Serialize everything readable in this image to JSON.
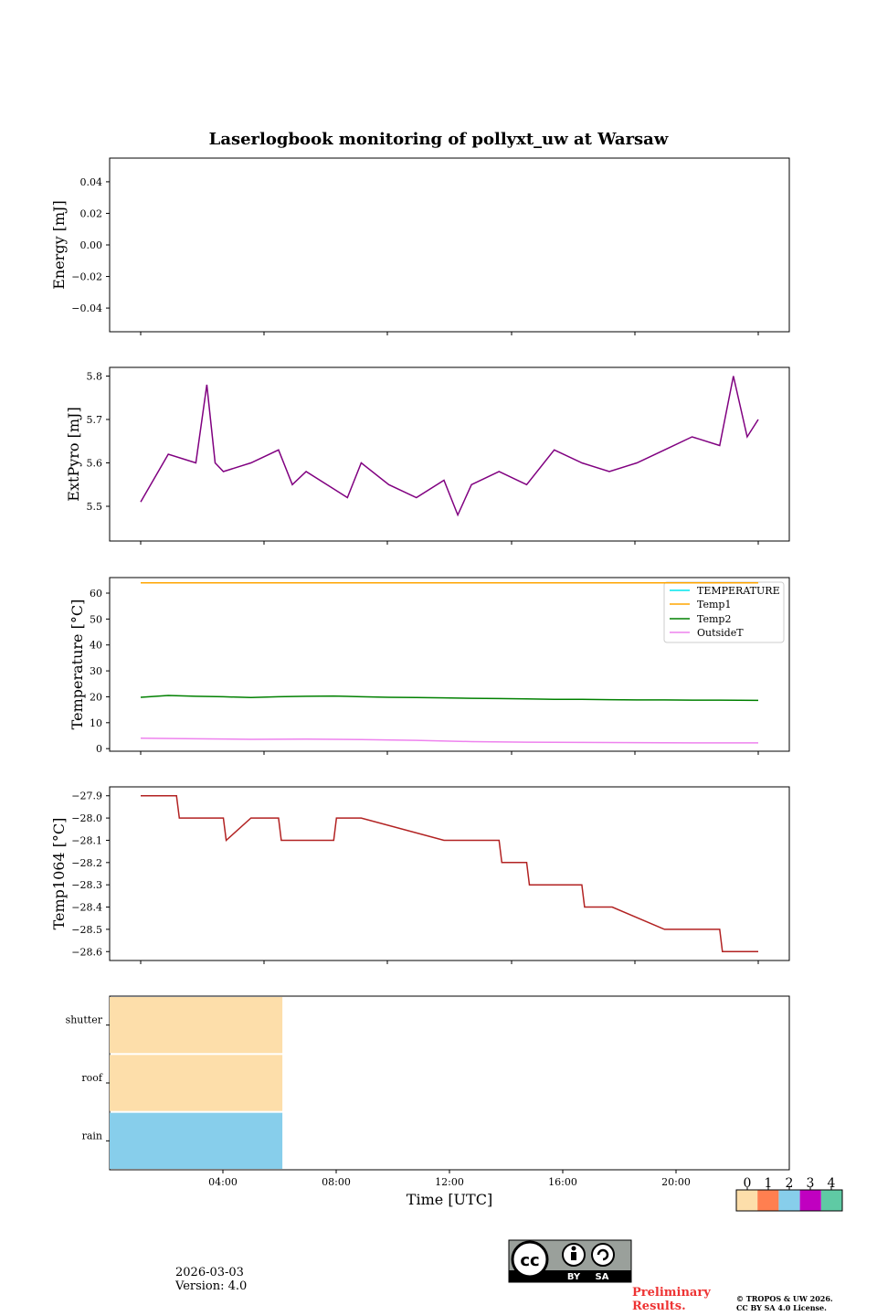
{
  "title": "Laserlogbook monitoring of pollyxt_uw at Warsaw",
  "date": "2026-03-03",
  "version": "Version: 4.0",
  "preliminary": [
    "Preliminary",
    "Results."
  ],
  "copyright": [
    "© TROPOS & UW 2026.",
    "CC BY SA 4.0 License."
  ],
  "license_badge": {
    "text": "cc",
    "by": "BY",
    "sa": "SA"
  },
  "colors": {
    "purple": "#800080",
    "orange": "#ffa500",
    "green": "#008000",
    "violet": "#ee82ee",
    "cyan": "#00e5ee",
    "red": "#b22222"
  },
  "chart_data": [
    {
      "type": "line",
      "ylabel": "Energy [mJ]",
      "xlim": [
        0,
        24
      ],
      "ylim": [
        -0.055,
        0.055
      ],
      "yticks": [
        0.04,
        0.02,
        0.0,
        -0.02,
        -0.04
      ],
      "ytick_labels": [
        "0.04",
        "0.02",
        "0.00",
        "−0.02",
        "−0.04"
      ],
      "series": []
    },
    {
      "type": "line",
      "ylabel": "ExtPyro [mJ]",
      "ylim": [
        5.42,
        5.82
      ],
      "yticks": [
        5.5,
        5.6,
        5.7,
        5.8
      ],
      "ytick_labels": [
        "5.5",
        "5.6",
        "5.7",
        "5.8"
      ],
      "series": [
        {
          "name": "ExtPyro",
          "color": "#800080",
          "x": [
            1.0,
            2.0,
            3.0,
            3.4,
            3.7,
            4.0,
            5.0,
            6.0,
            6.5,
            7.0,
            8.0,
            8.5,
            9.0,
            10.0,
            11.0,
            12.0,
            12.5,
            13.0,
            14.0,
            15.0,
            16.0,
            17.0,
            18.0,
            19.0,
            20.0,
            21.0,
            22.0,
            22.5,
            23.0,
            23.4
          ],
          "y": [
            5.51,
            5.62,
            5.6,
            5.78,
            5.6,
            5.58,
            5.6,
            5.63,
            5.55,
            5.58,
            5.54,
            5.52,
            5.6,
            5.55,
            5.52,
            5.56,
            5.48,
            5.55,
            5.58,
            5.55,
            5.63,
            5.6,
            5.58,
            5.6,
            5.63,
            5.66,
            5.64,
            5.8,
            5.66,
            5.7
          ]
        }
      ]
    },
    {
      "type": "line",
      "ylabel": "Temperature [°C]",
      "ylim": [
        -1,
        66
      ],
      "yticks": [
        0,
        10,
        20,
        30,
        40,
        50,
        60
      ],
      "ytick_labels": [
        "0",
        "10",
        "20",
        "30",
        "40",
        "50",
        "60"
      ],
      "legend": [
        "TEMPERATURE",
        "Temp1",
        "Temp2",
        "OutsideT"
      ],
      "legend_position": "top-right",
      "series": [
        {
          "name": "TEMPERATURE",
          "color": "#00e5ee",
          "x": [],
          "y": []
        },
        {
          "name": "Temp1",
          "color": "#ffa500",
          "x": [
            1.0,
            23.4
          ],
          "y": [
            64,
            64
          ]
        },
        {
          "name": "Temp2",
          "color": "#008000",
          "x": [
            1.0,
            2.0,
            3.0,
            4.0,
            5.0,
            6.0,
            7.0,
            8.0,
            9.0,
            10.0,
            11.0,
            12.0,
            13.0,
            14.0,
            15.0,
            16.0,
            17.0,
            18.0,
            19.0,
            20.0,
            21.0,
            22.0,
            23.4
          ],
          "y": [
            19.8,
            20.5,
            20.2,
            20.0,
            19.7,
            20.0,
            20.2,
            20.3,
            20.0,
            19.8,
            19.7,
            19.6,
            19.4,
            19.3,
            19.2,
            19.0,
            19.0,
            18.9,
            18.8,
            18.8,
            18.7,
            18.7,
            18.6
          ]
        },
        {
          "name": "OutsideT",
          "color": "#ee82ee",
          "x": [
            1.0,
            3.0,
            5.0,
            7.0,
            9.0,
            11.0,
            13.0,
            15.0,
            17.0,
            19.0,
            21.0,
            23.4
          ],
          "y": [
            4.0,
            3.8,
            3.6,
            3.7,
            3.5,
            3.2,
            2.7,
            2.5,
            2.4,
            2.3,
            2.2,
            2.2
          ]
        }
      ]
    },
    {
      "type": "line",
      "ylabel": "Temp1064 [°C]",
      "ylim": [
        -28.64,
        -27.86
      ],
      "yticks": [
        -27.9,
        -28.0,
        -28.1,
        -28.2,
        -28.3,
        -28.4,
        -28.5,
        -28.6
      ],
      "ytick_labels": [
        "−27.9",
        "−28.0",
        "−28.1",
        "−28.2",
        "−28.3",
        "−28.4",
        "−28.5",
        "−28.6"
      ],
      "xticks": [
        0,
        4,
        8,
        12,
        16,
        20,
        24
      ],
      "series": [
        {
          "name": "Temp1064",
          "color": "#b22222",
          "x": [
            1.0,
            2.3,
            2.4,
            4.0,
            4.1,
            5.0,
            6.0,
            6.1,
            8.0,
            8.1,
            9.0,
            12.0,
            12.1,
            14.0,
            14.1,
            15.0,
            15.1,
            16.0,
            16.1,
            17.0,
            17.1,
            18.0,
            18.1,
            20.0,
            20.1,
            21.0,
            22.0,
            22.1,
            23.4
          ],
          "y": [
            -27.9,
            -27.9,
            -28.0,
            -28.0,
            -28.1,
            -28.0,
            -28.0,
            -28.1,
            -28.1,
            -28.0,
            -28.0,
            -28.1,
            -28.1,
            -28.1,
            -28.2,
            -28.2,
            -28.3,
            -28.3,
            -28.3,
            -28.3,
            -28.4,
            -28.4,
            -28.4,
            -28.5,
            -28.5,
            -28.5,
            -28.5,
            -28.6,
            -28.6
          ]
        }
      ]
    },
    {
      "type": "heatmap",
      "xlabel": "Time [UTC]",
      "xtick_labels": [
        "04:00",
        "08:00",
        "12:00",
        "16:00",
        "20:00"
      ],
      "xticks": [
        4,
        8,
        12,
        16,
        20
      ],
      "rows": [
        "shutter",
        "roof",
        "rain"
      ],
      "segments": [
        {
          "row": "shutter",
          "x_start": 0,
          "x_end": 6.1,
          "value": 0
        },
        {
          "row": "roof",
          "x_start": 0,
          "x_end": 6.1,
          "value": 0
        },
        {
          "row": "rain",
          "x_start": 0,
          "x_end": 6.1,
          "value": 2
        }
      ],
      "colorbar": {
        "ticks": [
          "0",
          "1",
          "2",
          "3",
          "4"
        ],
        "colors": [
          "#fddeaa",
          "#ff7f50",
          "#87ceeb",
          "#c000c0",
          "#5fcaa4"
        ]
      }
    }
  ]
}
